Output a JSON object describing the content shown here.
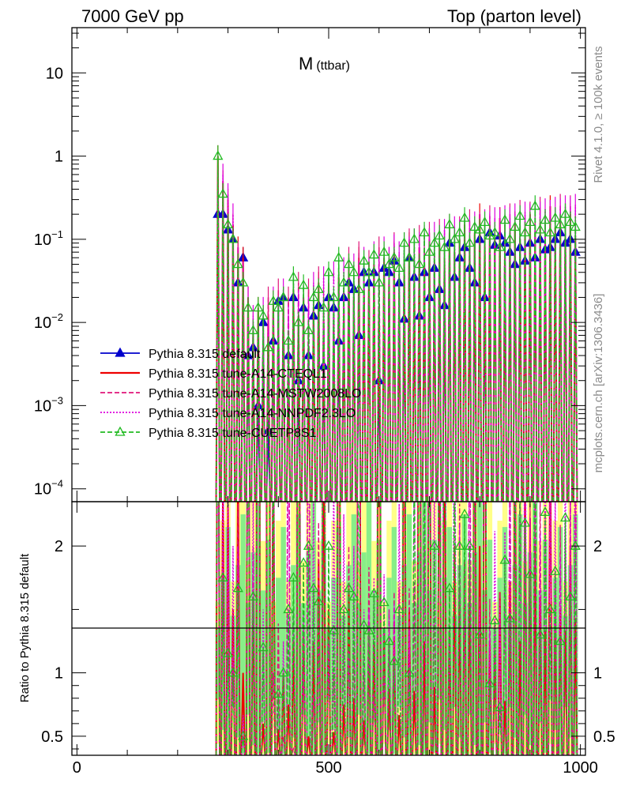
{
  "header": {
    "left": "7000 GeV pp",
    "right": "Top (parton level)"
  },
  "sidebar": {
    "rivet": "Rivet 4.1.0, ≥ 100k events",
    "mcplots": "mcplots.cern.ch [arXiv:1306.3436]"
  },
  "chart_data": {
    "type": "line",
    "title": "M",
    "title_sub": "(ttbar)",
    "xlabel": "",
    "ylabel": "",
    "ratio_ylabel": "Ratio to Pythia 8.315 default",
    "xlim": [
      -10,
      1010
    ],
    "ylim": [
      7e-05,
      35
    ],
    "yscale": "log",
    "ratio_ylim": [
      0.35,
      2.35
    ],
    "x_ticks": [
      0,
      500,
      1000
    ],
    "y_ticks": [
      {
        "v": 0.0001,
        "m": "10",
        "e": "−4"
      },
      {
        "v": 0.001,
        "m": "10",
        "e": "−3"
      },
      {
        "v": 0.01,
        "m": "10",
        "e": "−2"
      },
      {
        "v": 0.1,
        "m": "10",
        "e": "−1"
      },
      {
        "v": 1,
        "m": "1",
        "e": ""
      },
      {
        "v": 10,
        "m": "10",
        "e": ""
      }
    ],
    "ratio_ticks": [
      0.5,
      1,
      2
    ],
    "legend_position": "middle-left",
    "x": [
      280,
      290,
      300,
      310,
      320,
      330,
      340,
      350,
      360,
      370,
      380,
      390,
      400,
      410,
      420,
      430,
      440,
      450,
      460,
      470,
      480,
      490,
      500,
      510,
      520,
      530,
      540,
      550,
      560,
      570,
      580,
      590,
      600,
      610,
      620,
      630,
      640,
      650,
      660,
      670,
      680,
      690,
      700,
      710,
      720,
      730,
      740,
      750,
      760,
      770,
      780,
      790,
      800,
      810,
      820,
      830,
      840,
      850,
      860,
      870,
      880,
      890,
      900,
      910,
      920,
      930,
      940,
      950,
      960,
      970,
      980,
      990
    ],
    "series": [
      {
        "name": "Pythia 8.315 default",
        "color": "#0000cc",
        "style": "solid",
        "marker": "triangle-filled",
        "values": [
          0.2,
          0.2,
          0.13,
          0.1,
          0.03,
          0.06,
          0.004,
          0.005,
          0.001,
          0.01,
          0.0005,
          0.006,
          0.018,
          0.02,
          0.004,
          0.02,
          0.002,
          0.015,
          0.004,
          0.012,
          0.016,
          0.003,
          0.02,
          0.015,
          0.006,
          0.02,
          0.03,
          0.025,
          0.007,
          0.04,
          0.03,
          0.04,
          0.002,
          0.045,
          0.04,
          0.055,
          0.03,
          0.011,
          0.06,
          0.035,
          0.012,
          0.04,
          0.02,
          0.045,
          0.025,
          0.016,
          0.09,
          0.035,
          0.06,
          0.08,
          0.045,
          0.03,
          0.1,
          0.02,
          0.12,
          0.085,
          0.11,
          0.09,
          0.07,
          0.05,
          0.08,
          0.055,
          0.09,
          0.06,
          0.1,
          0.075,
          0.08,
          0.1,
          0.12,
          0.09,
          0.1,
          0.07
        ]
      },
      {
        "name": "Pythia 8.315 tune-A14-CTEQL1",
        "color": "#ee0000",
        "style": "solid",
        "marker": "none",
        "values": [
          1.0,
          0.5,
          0.3,
          0.15,
          0.08,
          0.06,
          0.02,
          0.008,
          0.015,
          0.006,
          0.012,
          0.018,
          0.01,
          0.02,
          0.003,
          0.025,
          0.012,
          0.02,
          0.002,
          0.015,
          0.03,
          0.01,
          0.03,
          0.008,
          0.035,
          0.015,
          0.05,
          0.02,
          0.06,
          0.025,
          0.04,
          0.05,
          0.015,
          0.06,
          0.035,
          0.07,
          0.02,
          0.05,
          0.09,
          0.03,
          0.08,
          0.05,
          0.1,
          0.04,
          0.09,
          0.06,
          0.12,
          0.07,
          0.1,
          0.15,
          0.08,
          0.12,
          0.2,
          0.1,
          0.15,
          0.1,
          0.18,
          0.07,
          0.12,
          0.16,
          0.1,
          0.14,
          0.2,
          0.12,
          0.16,
          0.1,
          0.25,
          0.14,
          0.18,
          0.12,
          0.2,
          0.1
        ]
      },
      {
        "name": "Pythia 8.315 tune-A14-MSTW2008LO",
        "color": "#e0157a",
        "style": "dashed",
        "marker": "none",
        "values": [
          0.8,
          0.4,
          0.25,
          0.12,
          0.07,
          0.03,
          0.015,
          0.01,
          0.008,
          0.012,
          0.02,
          0.006,
          0.025,
          0.01,
          0.02,
          0.008,
          0.03,
          0.015,
          0.025,
          0.01,
          0.035,
          0.02,
          0.03,
          0.015,
          0.045,
          0.025,
          0.06,
          0.03,
          0.07,
          0.04,
          0.055,
          0.035,
          0.08,
          0.045,
          0.06,
          0.09,
          0.05,
          0.07,
          0.1,
          0.06,
          0.11,
          0.08,
          0.12,
          0.07,
          0.13,
          0.09,
          0.15,
          0.1,
          0.14,
          0.12,
          0.17,
          0.11,
          0.16,
          0.13,
          0.19,
          0.12,
          0.18,
          0.15,
          0.2,
          0.14,
          0.22,
          0.16,
          0.21,
          0.15,
          0.24,
          0.17,
          0.22,
          0.18,
          0.26,
          0.2,
          0.25,
          0.19
        ]
      },
      {
        "name": "Pythia 8.315 tune-A14-NNPDF2.3LO",
        "color": "#dd00dd",
        "style": "dotted",
        "marker": "none",
        "values": [
          0.7,
          0.6,
          0.35,
          0.2,
          0.06,
          0.04,
          0.02,
          0.012,
          0.01,
          0.015,
          0.008,
          0.02,
          0.015,
          0.025,
          0.012,
          0.03,
          0.018,
          0.022,
          0.015,
          0.03,
          0.02,
          0.035,
          0.025,
          0.04,
          0.03,
          0.045,
          0.035,
          0.05,
          0.04,
          0.06,
          0.045,
          0.07,
          0.05,
          0.08,
          0.06,
          0.085,
          0.07,
          0.09,
          0.08,
          0.1,
          0.09,
          0.11,
          0.1,
          0.12,
          0.11,
          0.13,
          0.12,
          0.14,
          0.13,
          0.15,
          0.14,
          0.16,
          0.15,
          0.17,
          0.16,
          0.18,
          0.17,
          0.19,
          0.18,
          0.2,
          0.19,
          0.21,
          0.2,
          0.22,
          0.21,
          0.23,
          0.22,
          0.24,
          0.23,
          0.25,
          0.24,
          0.26
        ]
      },
      {
        "name": "Pythia 8.315 tune-CUETP8S1",
        "color": "#22bb22",
        "style": "dashed",
        "marker": "triangle-open",
        "values": [
          1.0,
          0.35,
          0.15,
          0.1,
          0.05,
          0.03,
          0.015,
          0.008,
          0.015,
          0.012,
          0.005,
          0.018,
          0.015,
          0.02,
          0.006,
          0.035,
          0.01,
          0.028,
          0.008,
          0.02,
          0.025,
          0.015,
          0.04,
          0.02,
          0.06,
          0.03,
          0.05,
          0.04,
          0.025,
          0.055,
          0.04,
          0.065,
          0.03,
          0.07,
          0.05,
          0.06,
          0.045,
          0.09,
          0.06,
          0.1,
          0.05,
          0.12,
          0.07,
          0.09,
          0.11,
          0.08,
          0.15,
          0.1,
          0.12,
          0.18,
          0.09,
          0.14,
          0.13,
          0.16,
          0.11,
          0.12,
          0.08,
          0.17,
          0.1,
          0.14,
          0.19,
          0.12,
          0.16,
          0.25,
          0.13,
          0.17,
          0.12,
          0.18,
          0.15,
          0.2,
          0.16,
          0.14
        ]
      }
    ]
  }
}
